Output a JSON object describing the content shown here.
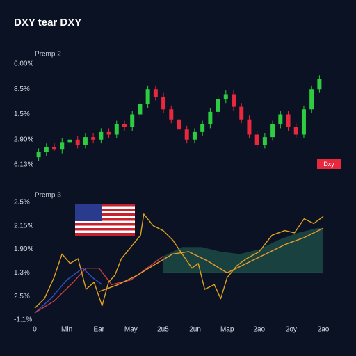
{
  "chart_data": [
    {
      "type": "candlestick",
      "title": "DXY tear DXY",
      "subtitle": "Premp 2",
      "ylim": [
        0,
        4
      ],
      "yticks": [
        {
          "value": 4,
          "label": "6.00%"
        },
        {
          "value": 3,
          "label": "8.5%"
        },
        {
          "value": 2,
          "label": "1.5%"
        },
        {
          "value": 1,
          "label": "2.90%"
        },
        {
          "value": 0,
          "label": "6.13%"
        }
      ],
      "up_color": "#2ecc40",
      "down_color": "#e8283c",
      "badge": {
        "text": "Dxy",
        "color": "#e8283c"
      },
      "open": [
        0.3,
        0.5,
        0.7,
        0.6,
        0.9,
        1.0,
        0.8,
        1.1,
        1.0,
        1.3,
        1.2,
        1.6,
        1.5,
        2.0,
        2.4,
        3.0,
        2.7,
        2.2,
        1.8,
        1.4,
        1.0,
        1.3,
        1.6,
        2.1,
        2.6,
        2.8,
        2.3,
        1.8,
        1.2,
        0.8,
        1.1,
        1.6,
        2.0,
        1.5,
        1.2,
        2.2,
        3.0
      ],
      "high": [
        0.65,
        0.85,
        0.85,
        1.05,
        1.15,
        1.15,
        1.25,
        1.25,
        1.45,
        1.45,
        1.75,
        1.75,
        2.15,
        2.55,
        3.15,
        3.15,
        2.85,
        2.35,
        1.95,
        1.55,
        1.45,
        1.75,
        2.25,
        2.75,
        2.95,
        2.95,
        2.45,
        1.95,
        1.35,
        1.25,
        1.75,
        2.15,
        2.15,
        1.65,
        2.35,
        3.15,
        3.55
      ],
      "low": [
        0.15,
        0.35,
        0.55,
        0.45,
        0.75,
        0.65,
        0.65,
        0.85,
        0.85,
        1.05,
        1.05,
        1.35,
        1.35,
        1.85,
        2.25,
        2.55,
        2.05,
        1.65,
        1.25,
        0.85,
        0.85,
        1.15,
        1.45,
        1.95,
        2.45,
        2.15,
        1.65,
        1.05,
        0.65,
        0.65,
        0.95,
        1.45,
        1.35,
        1.05,
        1.05,
        2.05,
        2.85
      ],
      "close": [
        0.5,
        0.7,
        0.6,
        0.9,
        1.0,
        0.8,
        1.1,
        1.0,
        1.3,
        1.2,
        1.6,
        1.5,
        2.0,
        2.4,
        3.0,
        2.7,
        2.2,
        1.8,
        1.4,
        1.0,
        1.3,
        1.6,
        2.1,
        2.6,
        2.8,
        2.3,
        1.8,
        1.2,
        0.8,
        1.1,
        1.6,
        2.0,
        1.5,
        1.2,
        2.2,
        3.0,
        3.4
      ]
    },
    {
      "type": "line",
      "subtitle": "Premp 3",
      "xlim": [
        0,
        9
      ],
      "ylim": [
        0,
        5
      ],
      "xticks": [
        0,
        {
          "value": 1,
          "label": "Min"
        },
        {
          "value": 2,
          "label": "Ear"
        },
        {
          "value": 3,
          "label": "May"
        },
        {
          "value": 4,
          "label": "2u5"
        },
        {
          "value": 5,
          "label": "2un"
        },
        {
          "value": 6,
          "label": "Map"
        },
        {
          "value": 7,
          "label": "2ao"
        },
        {
          "value": 8,
          "label": "2oy"
        },
        {
          "value": 9,
          "label": "2ao"
        }
      ],
      "yticks": [
        {
          "value": 5,
          "label": "2.5%"
        },
        {
          "value": 4,
          "label": "2.15%"
        },
        {
          "value": 3,
          "label": "1.90%"
        },
        {
          "value": 2,
          "label": "1.3%"
        },
        {
          "value": 1,
          "label": "2.5%"
        },
        {
          "value": 0,
          "label": "-1.1%"
        }
      ],
      "area": {
        "color": "#1b4a44",
        "base": 2,
        "x": [
          4.0,
          4.6,
          5.2,
          5.8,
          6.4,
          7.0,
          7.6,
          8.2,
          8.8,
          9.0
        ],
        "values": [
          2.7,
          3.1,
          3.1,
          2.9,
          2.8,
          3.0,
          3.4,
          3.7,
          3.9,
          3.9
        ]
      },
      "series": [
        {
          "color": "#3050c0",
          "x": [
            0,
            0.5,
            1.0,
            1.5,
            1.8,
            2.1
          ],
          "values": [
            0.3,
            0.9,
            1.7,
            2.2,
            1.8,
            1.5
          ]
        },
        {
          "color": "#c84040",
          "x": [
            0,
            0.6,
            1.2,
            1.6,
            2.0,
            2.4,
            3.0,
            3.6,
            4.0
          ],
          "values": [
            0.3,
            0.8,
            1.6,
            2.2,
            2.2,
            1.5,
            1.7,
            2.3,
            2.7
          ]
        },
        {
          "color": "#e89a30",
          "x": [
            2.0,
            2.6,
            3.2,
            3.8,
            4.3,
            4.8,
            5.4,
            6.0,
            6.6,
            7.2,
            7.8,
            8.4,
            9.0
          ],
          "values": [
            1.2,
            1.5,
            1.9,
            2.4,
            2.8,
            2.9,
            2.5,
            2.0,
            2.4,
            2.8,
            3.2,
            3.5,
            3.9
          ]
        },
        {
          "color": "#e0a020",
          "x": [
            0,
            0.3,
            0.6,
            0.85,
            1.1,
            1.35,
            1.6,
            1.85,
            2.1,
            2.3,
            2.5,
            2.7,
            3.0,
            3.3,
            3.4,
            3.7,
            4.0,
            4.3,
            4.6,
            4.9,
            5.1,
            5.3,
            5.6,
            5.8,
            6.0,
            6.3,
            6.6,
            7.0,
            7.4,
            7.8,
            8.1,
            8.4,
            8.7,
            9.0
          ],
          "values": [
            0.5,
            0.9,
            1.8,
            2.8,
            2.4,
            2.6,
            1.3,
            1.6,
            0.6,
            1.6,
            1.9,
            2.6,
            3.1,
            3.6,
            4.5,
            4.0,
            3.8,
            3.4,
            2.8,
            2.2,
            2.4,
            1.3,
            1.5,
            0.9,
            1.8,
            2.3,
            2.6,
            2.9,
            3.6,
            3.8,
            3.7,
            4.3,
            4.1,
            4.4
          ]
        }
      ]
    }
  ]
}
